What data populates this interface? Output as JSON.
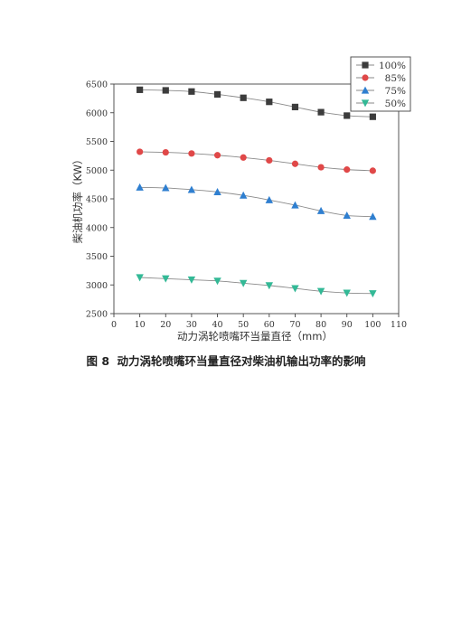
{
  "chart_data": {
    "type": "line",
    "title": "",
    "xlabel": "动力涡轮喷嘴环当量直径（mm）",
    "ylabel": "柴油机功率（KW）",
    "xlim": [
      0,
      110
    ],
    "ylim": [
      2500,
      6500
    ],
    "xticks": [
      0,
      10,
      20,
      30,
      40,
      50,
      60,
      70,
      80,
      90,
      100,
      110
    ],
    "yticks": [
      2500,
      3000,
      3500,
      4000,
      4500,
      5000,
      5500,
      6000,
      6500
    ],
    "grid": false,
    "legend_position": "top-right",
    "x": [
      10,
      20,
      30,
      40,
      50,
      60,
      70,
      80,
      90,
      100
    ],
    "series": [
      {
        "name": "100%",
        "marker": "square",
        "color": "#3c3c3c",
        "values": [
          6400,
          6390,
          6370,
          6320,
          6260,
          6190,
          6100,
          6010,
          5950,
          5930
        ]
      },
      {
        "name": "85%",
        "marker": "circle",
        "color": "#e04848",
        "values": [
          5320,
          5310,
          5290,
          5260,
          5220,
          5170,
          5110,
          5050,
          5010,
          4990
        ]
      },
      {
        "name": "75%",
        "marker": "triangle-up",
        "color": "#2f7fd0",
        "values": [
          4700,
          4690,
          4660,
          4620,
          4560,
          4480,
          4390,
          4290,
          4210,
          4190
        ]
      },
      {
        "name": "50%",
        "marker": "triangle-down",
        "color": "#33b996",
        "values": [
          3130,
          3110,
          3090,
          3070,
          3030,
          2990,
          2940,
          2890,
          2860,
          2850
        ]
      }
    ]
  },
  "caption": {
    "label": "图 8",
    "text": "动力涡轮喷嘴环当量直径对柴油机输出功率的影响"
  }
}
